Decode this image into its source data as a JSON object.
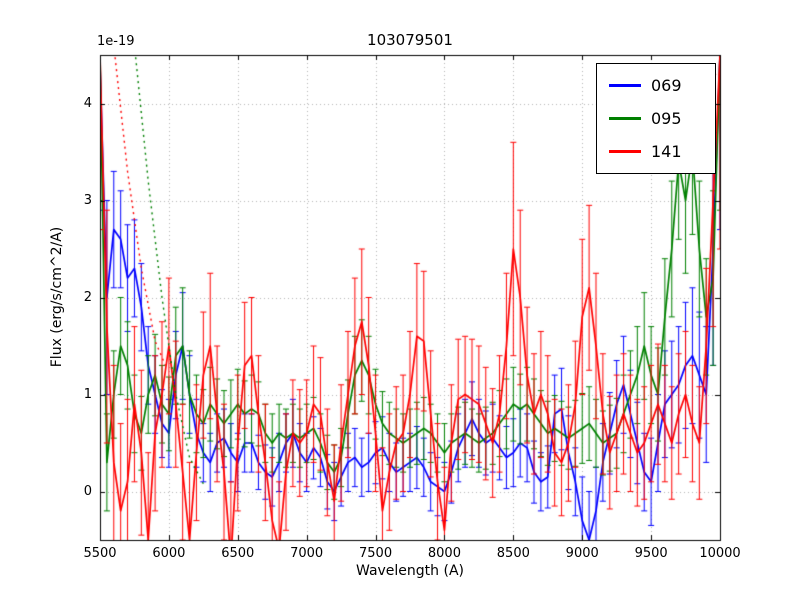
{
  "chart_data": {
    "type": "line",
    "title": "103079501",
    "xlabel": "Wavelength (A)",
    "ylabel": "Flux (erg/s/cm^2/A)",
    "y_offset_text": "1e-19",
    "xlim": [
      5500,
      10000
    ],
    "ylim": [
      -0.5,
      4.5
    ],
    "x_ticks": [
      5500,
      6000,
      6500,
      7000,
      7500,
      8000,
      8500,
      9000,
      9500,
      10000
    ],
    "y_ticks": [
      0,
      1,
      2,
      3,
      4
    ],
    "grid": true,
    "grid_color": "#b4b4b4",
    "legend_position": "upper right",
    "x_start": 5500,
    "x_step": 50,
    "series": [
      {
        "name": "069",
        "color": "#0000ff",
        "values": [
          4.4,
          2.0,
          2.7,
          2.6,
          2.2,
          2.3,
          1.9,
          1.3,
          1.0,
          0.7,
          0.6,
          1.2,
          1.5,
          1.0,
          0.6,
          0.4,
          0.3,
          0.5,
          0.55,
          0.4,
          0.3,
          0.5,
          0.5,
          0.3,
          0.2,
          0.15,
          0.3,
          0.5,
          0.6,
          0.4,
          0.3,
          0.45,
          0.35,
          0.1,
          0.0,
          0.15,
          0.3,
          0.35,
          0.25,
          0.3,
          0.4,
          0.45,
          0.3,
          0.2,
          0.25,
          0.3,
          0.35,
          0.25,
          0.1,
          0.05,
          0.0,
          0.2,
          0.45,
          0.6,
          0.75,
          0.6,
          0.5,
          0.55,
          0.45,
          0.35,
          0.4,
          0.5,
          0.45,
          0.2,
          0.1,
          0.15,
          0.8,
          0.85,
          0.4,
          0.1,
          -0.3,
          -0.5,
          -0.2,
          0.3,
          0.6,
          0.9,
          1.1,
          0.8,
          0.5,
          0.2,
          0.1,
          0.5,
          0.9,
          1.0,
          1.1,
          1.3,
          1.4,
          1.2,
          1.0,
          2.5,
          4.5
        ],
        "errors": [
          1.5,
          1.0,
          0.6,
          0.5,
          0.55,
          0.5,
          0.45,
          0.4,
          0.4,
          0.35,
          0.35,
          0.45,
          0.55,
          0.4,
          0.35,
          0.3,
          0.3,
          0.3,
          0.3,
          0.3,
          0.3,
          0.3,
          0.3,
          0.28,
          0.28,
          0.3,
          0.3,
          0.3,
          0.35,
          0.3,
          0.3,
          0.32,
          0.3,
          0.28,
          0.3,
          0.3,
          0.3,
          0.3,
          0.3,
          0.3,
          0.32,
          0.32,
          0.3,
          0.3,
          0.3,
          0.3,
          0.32,
          0.3,
          0.3,
          0.3,
          0.3,
          0.32,
          0.35,
          0.35,
          0.38,
          0.35,
          0.33,
          0.35,
          0.33,
          0.32,
          0.35,
          0.35,
          0.35,
          0.32,
          0.3,
          0.32,
          0.4,
          0.42,
          0.38,
          0.35,
          0.45,
          0.5,
          0.45,
          0.4,
          0.42,
          0.45,
          0.5,
          0.45,
          0.42,
          0.4,
          0.45,
          0.5,
          0.55,
          0.55,
          0.6,
          0.65,
          0.7,
          0.65,
          0.7,
          1.2,
          1.8
        ]
      },
      {
        "name": "095",
        "color": "#008000",
        "values": [
          4.5,
          0.3,
          1.0,
          1.5,
          1.3,
          0.8,
          0.6,
          1.0,
          1.2,
          0.9,
          0.8,
          1.4,
          1.5,
          1.0,
          0.8,
          0.7,
          0.9,
          0.8,
          0.7,
          0.8,
          0.9,
          0.8,
          0.85,
          0.8,
          0.6,
          0.5,
          0.6,
          0.55,
          0.6,
          0.55,
          0.6,
          0.65,
          0.5,
          0.3,
          0.2,
          0.35,
          0.8,
          1.2,
          1.35,
          1.2,
          0.9,
          0.7,
          0.6,
          0.55,
          0.5,
          0.55,
          0.6,
          0.65,
          0.6,
          0.5,
          0.4,
          0.5,
          0.55,
          0.6,
          0.55,
          0.5,
          0.55,
          0.6,
          0.7,
          0.8,
          0.9,
          0.85,
          0.9,
          0.8,
          0.7,
          0.6,
          0.65,
          0.6,
          0.55,
          0.6,
          0.65,
          0.7,
          0.6,
          0.5,
          0.55,
          0.6,
          0.8,
          1.0,
          1.2,
          1.5,
          1.2,
          1.0,
          1.8,
          2.5,
          3.4,
          3.0,
          3.5,
          2.5,
          1.8,
          2.2,
          4.5
        ],
        "errors": [
          1.5,
          0.5,
          0.45,
          0.5,
          0.45,
          0.4,
          0.38,
          0.4,
          0.42,
          0.4,
          0.38,
          0.5,
          0.6,
          0.45,
          0.4,
          0.35,
          0.38,
          0.36,
          0.34,
          0.35,
          0.36,
          0.34,
          0.35,
          0.33,
          0.3,
          0.3,
          0.3,
          0.3,
          0.3,
          0.3,
          0.3,
          0.32,
          0.3,
          0.28,
          0.28,
          0.3,
          0.35,
          0.4,
          0.42,
          0.4,
          0.36,
          0.33,
          0.32,
          0.3,
          0.3,
          0.3,
          0.32,
          0.32,
          0.3,
          0.3,
          0.3,
          0.3,
          0.32,
          0.32,
          0.3,
          0.3,
          0.32,
          0.32,
          0.34,
          0.36,
          0.38,
          0.36,
          0.38,
          0.36,
          0.34,
          0.33,
          0.34,
          0.33,
          0.32,
          0.34,
          0.36,
          0.38,
          0.35,
          0.33,
          0.34,
          0.36,
          0.4,
          0.45,
          0.5,
          0.55,
          0.5,
          0.48,
          0.6,
          0.7,
          0.8,
          0.75,
          0.85,
          0.7,
          0.6,
          0.9,
          1.6
        ]
      },
      {
        "name": "141",
        "color": "#ff0000",
        "values": [
          4.5,
          1.7,
          0.3,
          -0.2,
          0.1,
          0.9,
          0.4,
          -0.5,
          0.6,
          1.0,
          1.5,
          0.9,
          0.2,
          -0.5,
          0.4,
          1.2,
          1.5,
          0.8,
          0.2,
          -0.7,
          0.5,
          1.3,
          1.4,
          0.8,
          0.3,
          -0.3,
          -0.6,
          0.2,
          0.6,
          0.5,
          0.6,
          0.9,
          0.8,
          0.3,
          -0.1,
          0.5,
          1.0,
          1.5,
          1.75,
          1.3,
          0.6,
          -0.2,
          0.2,
          0.5,
          0.6,
          1.0,
          1.6,
          1.55,
          0.8,
          0.1,
          -0.4,
          0.5,
          0.95,
          1.0,
          0.95,
          0.9,
          0.7,
          0.5,
          0.8,
          1.5,
          2.5,
          2.0,
          1.2,
          0.8,
          1.0,
          0.8,
          0.4,
          0.3,
          0.5,
          0.9,
          1.8,
          2.1,
          1.5,
          0.8,
          0.4,
          0.6,
          0.8,
          0.6,
          0.4,
          0.5,
          0.7,
          0.9,
          0.7,
          0.5,
          0.8,
          1.0,
          0.7,
          0.5,
          1.5,
          3.0,
          4.5
        ],
        "errors": [
          1.8,
          1.2,
          1.0,
          0.9,
          0.85,
          0.8,
          0.85,
          0.9,
          0.8,
          0.75,
          0.7,
          0.65,
          0.7,
          0.8,
          0.7,
          0.65,
          0.75,
          0.7,
          0.7,
          0.8,
          0.7,
          0.65,
          0.6,
          0.6,
          0.6,
          0.65,
          0.7,
          0.6,
          0.55,
          0.55,
          0.55,
          0.6,
          0.58,
          0.55,
          0.58,
          0.6,
          0.65,
          0.7,
          0.75,
          0.7,
          0.6,
          0.65,
          0.6,
          0.58,
          0.6,
          0.65,
          0.75,
          0.72,
          0.65,
          0.6,
          0.65,
          0.6,
          0.62,
          0.6,
          0.62,
          0.6,
          0.58,
          0.56,
          0.6,
          0.75,
          1.1,
          0.9,
          0.7,
          0.62,
          0.65,
          0.6,
          0.55,
          0.55,
          0.6,
          0.65,
          0.8,
          0.85,
          0.75,
          0.62,
          0.58,
          0.6,
          0.62,
          0.6,
          0.55,
          0.58,
          0.6,
          0.62,
          0.6,
          0.58,
          0.62,
          0.65,
          0.6,
          0.58,
          0.8,
          1.3,
          2.0
        ]
      }
    ],
    "dotted_curves": [
      {
        "color": "#ff0000",
        "x": [
          5600,
          5700,
          5800,
          5900,
          5975
        ],
        "y": [
          4.6,
          3.3,
          2.3,
          1.55,
          1.3
        ]
      },
      {
        "color": "#008000",
        "x": [
          5750,
          5850,
          5950,
          6050,
          6150,
          6250
        ],
        "y": [
          4.6,
          3.2,
          2.0,
          1.0,
          0.35,
          0.08
        ]
      }
    ]
  }
}
